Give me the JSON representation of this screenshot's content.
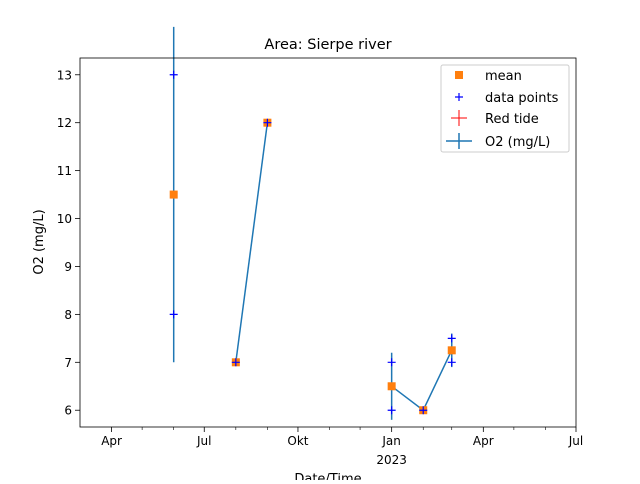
{
  "chart_data": {
    "type": "line",
    "title": "Area: Sierpe river",
    "xlabel": "Date/Time",
    "ylabel": "O2 (mg/L)",
    "xlim": [
      "2022-03-01",
      "2023-07-01"
    ],
    "ylim": [
      5.65,
      13.35
    ],
    "x_ticks": [
      {
        "date": "2022-04-01",
        "label": "Apr"
      },
      {
        "date": "2022-07-01",
        "label": "Jul"
      },
      {
        "date": "2022-10-01",
        "label": "Okt"
      },
      {
        "date": "2023-01-01",
        "label": "Jan",
        "sublabel": "2023"
      },
      {
        "date": "2023-04-01",
        "label": "Apr"
      },
      {
        "date": "2023-07-01",
        "label": "Jul"
      }
    ],
    "x_minor_ticks": [
      "2022-05-01",
      "2022-06-01",
      "2022-08-01",
      "2022-09-01",
      "2022-11-01",
      "2022-12-01",
      "2023-02-01",
      "2023-03-01",
      "2023-05-01",
      "2023-06-01"
    ],
    "y_ticks": [
      6,
      7,
      8,
      9,
      10,
      11,
      12,
      13
    ],
    "grid": false,
    "legend_position": "top-right",
    "legend": [
      "mean",
      "data points",
      "Red tide",
      "O2 (mg/L)"
    ],
    "colors": {
      "line": "#1f77b4",
      "mean": "#ff7f0e",
      "points": "#0000ff",
      "red_tide": "#ff0000"
    },
    "segments": [
      [
        {
          "x": "2022-06-01",
          "mean": 10.5,
          "err": 3.5,
          "points": [
            13,
            8
          ]
        }
      ],
      [
        {
          "x": "2022-08-01",
          "mean": 7.0,
          "err": 0,
          "points": [
            7
          ]
        },
        {
          "x": "2022-09-01",
          "mean": 12.0,
          "err": 0,
          "points": [
            12
          ]
        }
      ],
      [
        {
          "x": "2023-01-01",
          "mean": 6.5,
          "err": 0.7,
          "points": [
            7,
            6
          ]
        },
        {
          "x": "2023-02-01",
          "mean": 6.0,
          "err": 0,
          "points": [
            6
          ]
        },
        {
          "x": "2023-03-01",
          "mean": 7.25,
          "err": 0.35,
          "points": [
            7.5,
            7
          ]
        }
      ]
    ]
  }
}
